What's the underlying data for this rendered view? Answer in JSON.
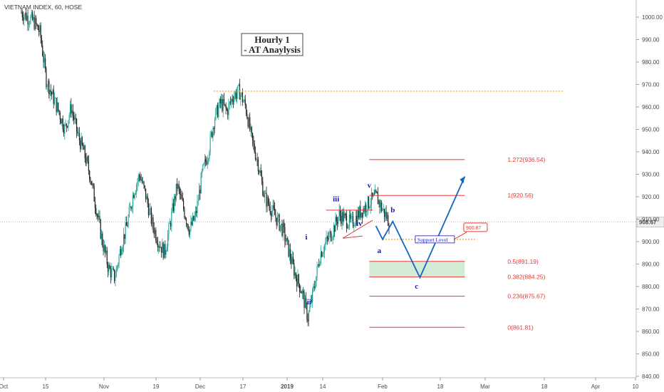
{
  "chart_data": {
    "type": "candlestick",
    "title": "VIETNAM INDEX, 60, HOSE",
    "box_title": [
      "Hourly 1",
      "- AT Anaylysis"
    ],
    "last_price": "908.67",
    "y_ticks": [
      "1000.00",
      "990.00",
      "980.00",
      "970.00",
      "960.00",
      "950.00",
      "940.00",
      "930.00",
      "920.00",
      "910.00",
      "900.00",
      "890.00",
      "880.00",
      "870.00",
      "860.00",
      "850.00",
      "840.00"
    ],
    "x_ticks": [
      "Oct",
      "15",
      "Nov",
      "19",
      "Dec",
      "17",
      "2019",
      "14",
      "Feb",
      "18",
      "Mar",
      "18",
      "Apr",
      "10"
    ],
    "ylim": [
      838,
      1004
    ],
    "fib_levels": [
      {
        "label": "1.272(936.54)",
        "value": 936.54
      },
      {
        "label": "1(920.56)",
        "value": 920.56
      },
      {
        "label": "0.5(891.19)",
        "value": 891.19
      },
      {
        "label": "0.382(884.25)",
        "value": 884.25
      },
      {
        "label": "0.236(875.67)",
        "value": 875.67
      },
      {
        "label": "0(861.81)",
        "value": 861.81
      }
    ],
    "resistance_level": 967,
    "support_level": 901,
    "support_label": "Support Level",
    "support_value_label": "900.87",
    "wave_labels": [
      "i",
      "ii",
      "iii",
      "iv",
      "v",
      "a",
      "b",
      "c"
    ],
    "projection_path": [
      {
        "date": "2019-01-30",
        "value": 907
      },
      {
        "date": "2019-02-01",
        "value": 901
      },
      {
        "date": "2019-02-04",
        "value": 909
      },
      {
        "date": "2019-02-12",
        "value": 884
      },
      {
        "date": "2019-02-24",
        "value": 929
      }
    ],
    "series_close_path": [
      1002,
      1000,
      998,
      993,
      972,
      965,
      958,
      950,
      960,
      948,
      940,
      930,
      915,
      900,
      888,
      884,
      898,
      908,
      922,
      930,
      920,
      908,
      900,
      895,
      910,
      925,
      915,
      905,
      912,
      930,
      940,
      955,
      962,
      958,
      965,
      967,
      960,
      945,
      935,
      920,
      915,
      910,
      905,
      895,
      885,
      878,
      866,
      880,
      895,
      900,
      905,
      912,
      910,
      908,
      912,
      915,
      918,
      920,
      914,
      909
    ]
  },
  "colors": {
    "up": "#26a69a",
    "down": "#222222",
    "fib": "#e53935",
    "orange": "#ff9800",
    "wave": "#1a1aa8",
    "zone": "#c8e6c9"
  }
}
